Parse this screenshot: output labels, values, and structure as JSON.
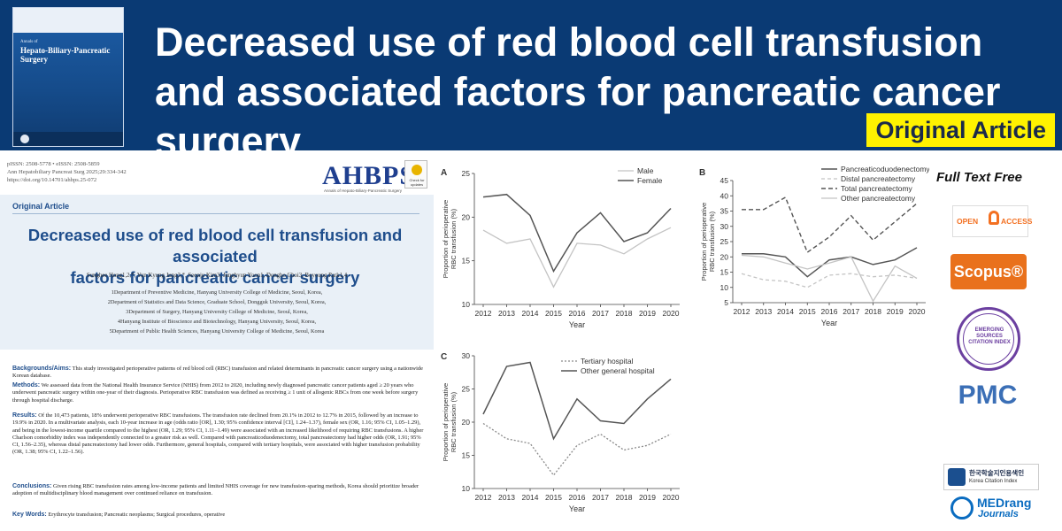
{
  "banner": {
    "headline": "Decreased use of red blood cell transfusion and associated factors for pancreatic cancer surgery",
    "badge": "Original Article"
  },
  "cover": {
    "journal_small": "Annals of",
    "journal_title": "Hepato-Biliary-Pancreatic Surgery"
  },
  "paper": {
    "issn": "pISSN: 2508-5778 • eISSN: 2508-5859",
    "citation": "Ann Hepatobiliary Pancreat Surg 2025;29:334-342",
    "doi": "https://doi.org/10.14701/ahbps.25-072",
    "logo": "AHBPS",
    "logo_sub": "Annals of Hepato-Biliary-Pancreatic Surgery",
    "check_updates": "Check for updates",
    "section_label": "Original Article",
    "title_line1": "Decreased use of red blood cell transfusion and associated",
    "title_line2": "factors for pancreatic cancer surgery",
    "authors": "Sunghee Hong1,2,*, Yun Kyung Jung3,*, Seonju Kim3, Junghyun Yoon1, Dongho Choi3, Boyoung Park1,4",
    "affiliations": [
      "1Department of Preventive Medicine, Hanyang University College of Medicine, Seoul, Korea,",
      "2Department of Statistics and Data Science, Graduate School, Dongguk University, Seoul, Korea,",
      "3Department of Surgery, Hanyang University College of Medicine, Seoul, Korea,",
      "4Hanyang Institute of Bioscience and Biotechnology, Hanyang University, Seoul, Korea,",
      "5Department of Public Health Sciences, Hanyang University College of Medicine, Seoul, Korea"
    ],
    "abstract": {
      "bg_label": "Backgrounds/Aims:",
      "bg_text": "This study investigated perioperative patterns of red blood cell (RBC) transfusion and related determinants in pancreatic cancer surgery using a nationwide Korean database.",
      "methods_label": "Methods:",
      "methods_text": "We assessed data from the National Health Insurance Service (NHIS) from 2012 to 2020, including newly diagnosed pancreatic cancer patients aged ≥ 20 years who underwent pancreatic surgery within one-year of their diagnosis. Perioperative RBC transfusion was defined as receiving ≥ 1 unit of allogenic RBCs from one week before surgery through hospital discharge.",
      "results_label": "Results:",
      "results_text": "Of the 10,473 patients, 18% underwent perioperative RBC transfusions. The transfusion rate declined from 20.1% in 2012 to 12.7% in 2015, followed by an increase to 19.9% in 2020. In a multivariate analysis, each 10-year increase in age (odds ratio [OR], 1.30; 95% confidence interval [CI], 1.24–1.37), female sex (OR, 1.16; 95% CI, 1.05–1.29), and being in the lowest-income quartile compared to the highest (OR, 1.29; 95% CI, 1.11–1.49) were associated with an increased likelihood of requiring RBC transfusions. A higher Charlson comorbidity index was independently connected to a greater risk as well. Compared with pancreaticoduodenectomy, total pancreatectomy had higher odds (OR, 1.91; 95% CI, 1.56–2.35), whereas distal pancreatectomy had lower odds. Furthermore, general hospitals, compared with tertiary hospitals, were associated with higher transfusion probability (OR, 1.38; 95% CI, 1.22–1.56).",
      "conclusions_label": "Conclusions:",
      "conclusions_text": "Given rising RBC transfusion rates among low-income patients and limited NHIS coverage for new transfusion-sparing methods, Korea should prioritize broader adoption of multidisciplinary blood management over continued reliance on transfusion.",
      "keywords_label": "Key Words:",
      "keywords_text": "Erythrocyte transfusion; Pancreatic neoplasms; Surgical procedures, operative"
    }
  },
  "sidebar": {
    "full_text": "Full Text Free",
    "open_access_a": "OPEN",
    "open_access_b": "ACCESS",
    "scopus": "Scopus®",
    "esci": "EMERGING SOURCES CITATION INDEX",
    "pmc": "PMC",
    "kci_korean": "한국학술지인용색인",
    "kci_english": "Korea Citation Index",
    "medrang_a": "MEDrang",
    "medrang_b": "Journals"
  },
  "chart_data": [
    {
      "type": "line",
      "panel": "A",
      "x": [
        2012,
        2013,
        2014,
        2015,
        2016,
        2017,
        2018,
        2019,
        2020
      ],
      "xlabel": "Year",
      "ylabel": "Proportion of perioperative RBC transfusion (%)",
      "ylim": [
        0,
        25
      ],
      "yticks": [
        10,
        15,
        20,
        25
      ],
      "legend": "top-right",
      "series": [
        {
          "name": "Male",
          "style": "light",
          "values": [
            18.5,
            17.0,
            17.5,
            12.0,
            17.0,
            16.8,
            15.8,
            17.5,
            18.8
          ]
        },
        {
          "name": "Female",
          "style": "dark",
          "values": [
            22.3,
            22.6,
            20.2,
            13.8,
            18.2,
            20.5,
            17.2,
            18.2,
            21.0
          ]
        }
      ]
    },
    {
      "type": "line",
      "panel": "B",
      "x": [
        2012,
        2013,
        2014,
        2015,
        2016,
        2017,
        2018,
        2019,
        2020
      ],
      "xlabel": "Year",
      "ylabel": "Proportion of perioperative RBC transfusion (%)",
      "ylim": [
        0,
        45
      ],
      "yticks": [
        5,
        10,
        15,
        20,
        25,
        30,
        35,
        40,
        45
      ],
      "legend": "top-right",
      "series": [
        {
          "name": "Pancreaticoduodenectomy",
          "style": "dark",
          "values": [
            21.0,
            21.0,
            20.0,
            13.5,
            19.0,
            20.0,
            17.5,
            19.0,
            23.0
          ]
        },
        {
          "name": "Distal pancreatectomy",
          "style": "light-dashed",
          "values": [
            14.5,
            12.5,
            12.0,
            10.0,
            14.0,
            14.5,
            13.5,
            14.0,
            13.0
          ]
        },
        {
          "name": "Total pancreatectomy",
          "style": "dark-dashed",
          "values": [
            35.5,
            35.5,
            39.5,
            21.5,
            26.5,
            33.5,
            25.5,
            31.5,
            37.5
          ]
        },
        {
          "name": "Other pancreatectomy",
          "style": "light",
          "values": [
            20.5,
            20.0,
            18.0,
            16.0,
            18.0,
            20.0,
            5.5,
            17.0,
            13.0
          ]
        }
      ]
    },
    {
      "type": "line",
      "panel": "C",
      "x": [
        2012,
        2013,
        2014,
        2015,
        2016,
        2017,
        2018,
        2019,
        2020
      ],
      "xlabel": "Year",
      "ylabel": "Proportion of perioperative RBC transfusion (%)",
      "ylim": [
        0,
        30
      ],
      "yticks": [
        10,
        15,
        20,
        25,
        30
      ],
      "legend": "top-right",
      "series": [
        {
          "name": "Tertiary hospital",
          "style": "light-dotted",
          "values": [
            19.8,
            17.5,
            16.8,
            12.0,
            16.5,
            18.2,
            15.8,
            16.5,
            18.2
          ]
        },
        {
          "name": "Other general hospital",
          "style": "dark",
          "values": [
            21.2,
            28.4,
            29.0,
            17.5,
            23.5,
            20.2,
            19.8,
            23.5,
            26.5
          ]
        }
      ]
    }
  ]
}
